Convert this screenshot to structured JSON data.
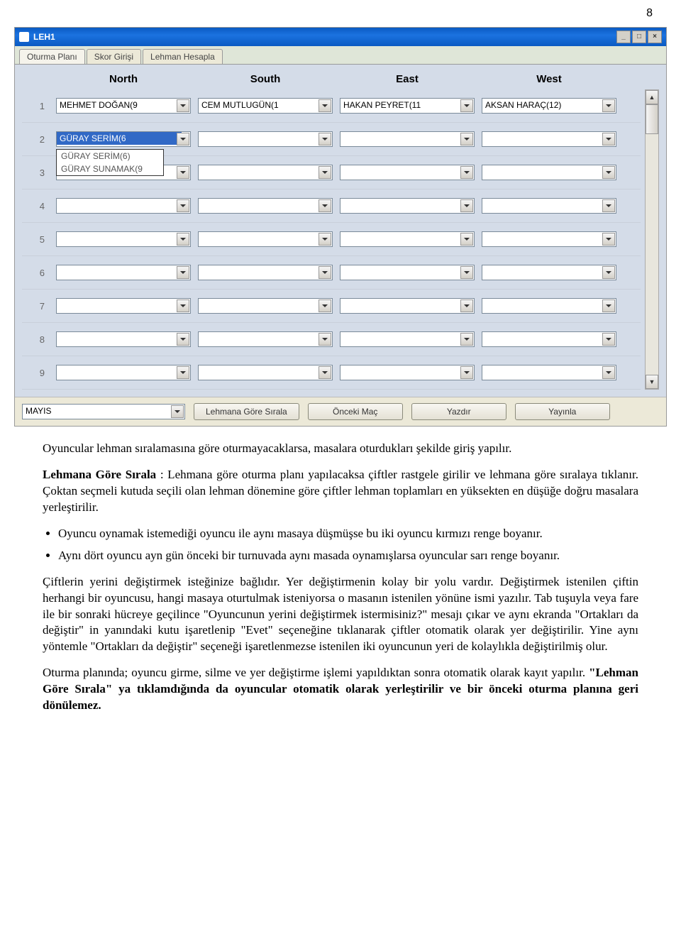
{
  "page_number": "8",
  "window": {
    "title": "LEH1",
    "min_label": "_",
    "max_label": "□",
    "close_label": "×"
  },
  "tabs": {
    "t0": "Oturma Planı",
    "t1": "Skor Girişi",
    "t2": "Lehman Hesapla"
  },
  "cols": {
    "north": "North",
    "south": "South",
    "east": "East",
    "west": "West"
  },
  "row_numbers": {
    "r1": "1",
    "r2": "2",
    "r3": "3",
    "r4": "4",
    "r5": "5",
    "r6": "6",
    "r7": "7",
    "r8": "8",
    "r9": "9"
  },
  "row1": {
    "north": "MEHMET DOĞAN(9",
    "south": "CEM MUTLUGÜN(1",
    "east": "HAKAN PEYRET(11",
    "west": "AKSAN HARAÇ(12)"
  },
  "row2": {
    "north": "GÜRAY SERİM(6",
    "opt1": "GÜRAY SERİM(6)",
    "opt2": "GÜRAY SUNAMAK(9"
  },
  "bottom": {
    "month": "MAYIS",
    "sort_btn": "Lehmana Göre Sırala",
    "prev_btn": "Önceki Maç",
    "print_btn": "Yazdır",
    "publish_btn": "Yayınla"
  },
  "doc": {
    "p1": "Oyuncular lehman sıralamasına göre oturmayacaklarsa, masalara oturdukları şekilde giriş yapılır.",
    "p2a": "Lehmana Göre Sırala",
    "p2b": " : Lehmana göre oturma planı yapılacaksa çiftler rastgele girilir ve lehmana göre sıralaya tıklanır. Çoktan seçmeli kutuda seçili olan lehman dönemine göre çiftler lehman toplamları en yüksekten en düşüğe doğru masalara yerleştirilir.",
    "li1": "Oyuncu oynamak istemediği oyuncu ile aynı masaya düşmüşse bu iki oyuncu kırmızı renge boyanır.",
    "li2": "Aynı dört oyuncu ayn gün önceki bir turnuvada aynı masada oynamışlarsa oyuncular sarı renge boyanır.",
    "p3": "Çiftlerin yerini değiştirmek isteğinize bağlıdır. Yer değiştirmenin kolay bir yolu vardır. Değiştirmek istenilen çiftin herhangi bir oyuncusu, hangi masaya oturtulmak isteniyorsa o masanın istenilen yönüne ismi yazılır. Tab tuşuyla veya fare ile bir sonraki hücreye geçilince \"Oyuncunun yerini değiştirmek istermisiniz?\" mesajı çıkar ve aynı ekranda \"Ortakları da değiştir\" in yanındaki kutu işaretlenip \"Evet\" seçeneğine tıklanarak çiftler otomatik olarak yer değiştirilir. Yine aynı yöntemle \"Ortakları da değiştir\" seçeneği işaretlenmezse istenilen iki oyuncunun yeri de kolaylıkla değiştirilmiş olur.",
    "p4a": "Oturma planında; oyuncu girme, silme ve yer değiştirme işlemi yapıldıktan sonra otomatik olarak kayıt yapılır. ",
    "p4b": "\"Lehman Göre Sırala\" ya tıklamdığında da oyuncular otomatik olarak yerleştirilir ve bir önceki oturma planına geri dönülemez."
  },
  "styles": {
    "panel_bg": "#d4dce8",
    "window_bg": "#ece9d8",
    "titlebar_gradient": [
      "#0a5ac2",
      "#1b72e0"
    ],
    "selection_bg": "#3169c6",
    "font_body": "Times New Roman",
    "font_ui": "Arial",
    "font_size_doc_pt": 17,
    "font_size_ui_pt": 12
  }
}
